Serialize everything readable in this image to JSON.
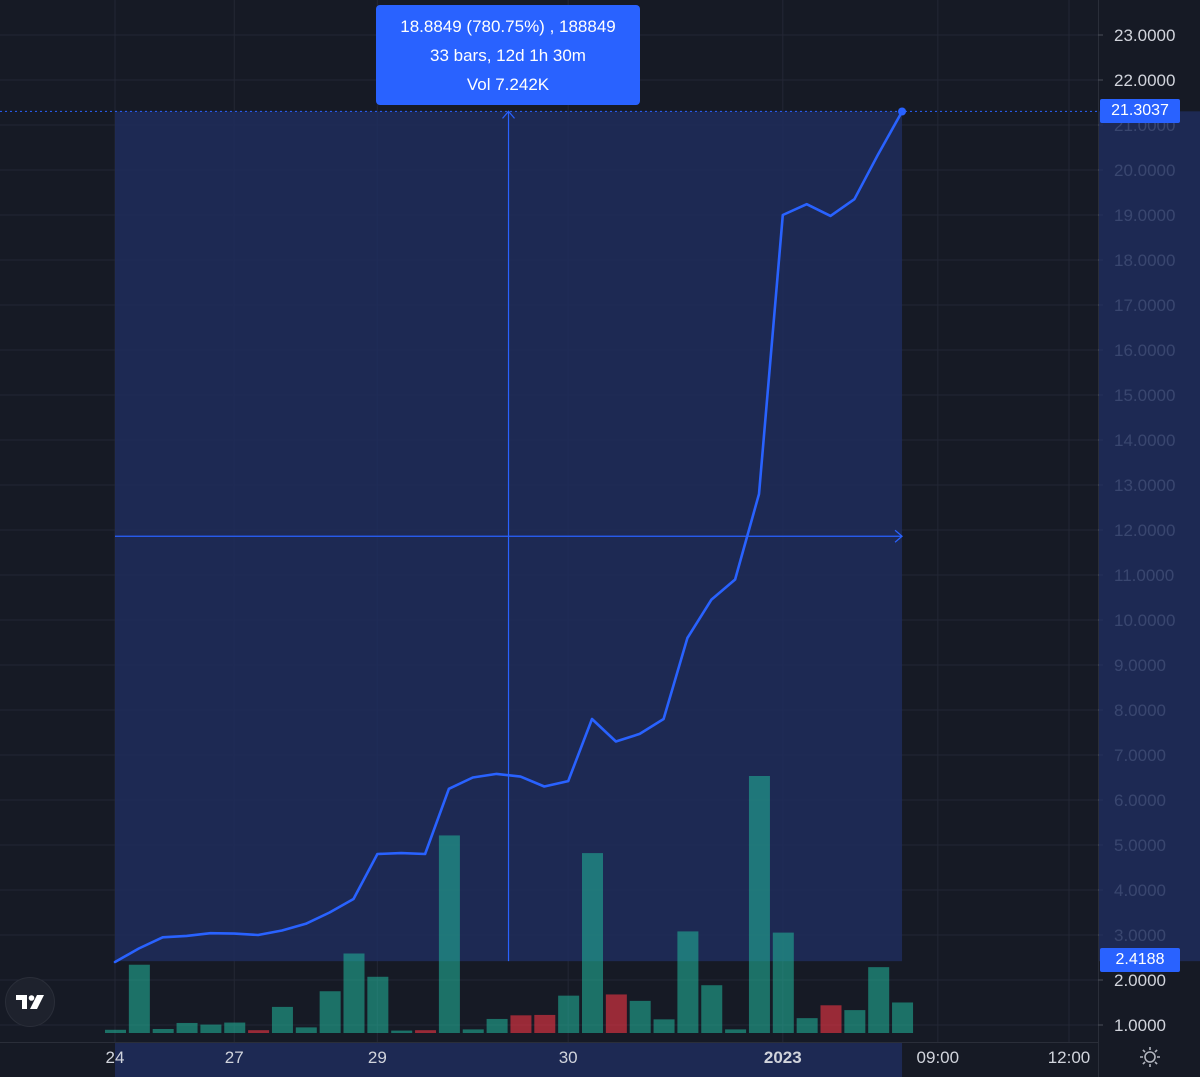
{
  "measure_tooltip": {
    "line1": "18.8849 (780.75%) , 188849",
    "line2": "33 bars, 12d 1h 30m",
    "line3": "Vol 7.242K"
  },
  "price_labels": {
    "current": "21.3037",
    "start": "2.4188"
  },
  "icons": {
    "logo": "tradingview-logo-icon",
    "settings": "gear-icon"
  },
  "colors": {
    "background": "#161a25",
    "line": "#2962ff",
    "selection_fill": "#1f2d5c",
    "volume_up": "#22ab94",
    "volume_down": "#f23645",
    "accent": "#2962ff"
  },
  "chart_data": {
    "type": "line",
    "price_axis": {
      "ticks": [
        "1.0000",
        "2.0000",
        "3.0000",
        "4.0000",
        "5.0000",
        "6.0000",
        "7.0000",
        "8.0000",
        "9.0000",
        "10.0000",
        "11.0000",
        "12.0000",
        "13.0000",
        "14.0000",
        "15.0000",
        "16.0000",
        "17.0000",
        "18.0000",
        "19.0000",
        "20.0000",
        "21.0000",
        "22.0000",
        "23.0000"
      ],
      "range": [
        0.8,
        23.5
      ]
    },
    "time_axis": {
      "ticks": [
        {
          "label": "24",
          "bar": 0,
          "bold": false
        },
        {
          "label": "27",
          "bar": 5,
          "bold": false
        },
        {
          "label": "29",
          "bar": 11,
          "bold": false
        },
        {
          "label": "30",
          "bar": 19,
          "bold": false
        },
        {
          "label": "2023",
          "bar": 28,
          "bold": true
        },
        {
          "label": "09:00",
          "bar": 34.5,
          "bold": false
        },
        {
          "label": "12:00",
          "bar": 40,
          "bold": false
        }
      ]
    },
    "series": [
      {
        "values": [
          2.4,
          2.7,
          2.95,
          2.98,
          3.04,
          3.03,
          3.0,
          3.1,
          3.25,
          3.5,
          3.8,
          4.8,
          4.82,
          4.8,
          6.25,
          6.5,
          6.58,
          6.52,
          6.3,
          6.42,
          7.8,
          7.3,
          7.47,
          7.8,
          9.6,
          10.45,
          10.9,
          12.8,
          19.0,
          19.24,
          18.98,
          19.35,
          20.35,
          21.3
        ]
      }
    ],
    "volume": [
      {
        "v": 80,
        "up": true
      },
      {
        "v": 1700,
        "up": true
      },
      {
        "v": 100,
        "up": true
      },
      {
        "v": 250,
        "up": true
      },
      {
        "v": 210,
        "up": true
      },
      {
        "v": 260,
        "up": true
      },
      {
        "v": 70,
        "up": false
      },
      {
        "v": 650,
        "up": true
      },
      {
        "v": 140,
        "up": true
      },
      {
        "v": 1040,
        "up": true
      },
      {
        "v": 1980,
        "up": true
      },
      {
        "v": 1400,
        "up": true
      },
      {
        "v": 60,
        "up": true
      },
      {
        "v": 70,
        "up": false
      },
      {
        "v": 4920,
        "up": true
      },
      {
        "v": 90,
        "up": true
      },
      {
        "v": 350,
        "up": true
      },
      {
        "v": 440,
        "up": false
      },
      {
        "v": 450,
        "up": false
      },
      {
        "v": 930,
        "up": true
      },
      {
        "v": 4480,
        "up": true
      },
      {
        "v": 960,
        "up": false
      },
      {
        "v": 800,
        "up": true
      },
      {
        "v": 340,
        "up": true
      },
      {
        "v": 2530,
        "up": true
      },
      {
        "v": 1190,
        "up": true
      },
      {
        "v": 90,
        "up": true
      },
      {
        "v": 6400,
        "up": true
      },
      {
        "v": 2500,
        "up": true
      },
      {
        "v": 370,
        "up": true
      },
      {
        "v": 690,
        "up": false
      },
      {
        "v": 570,
        "up": true
      },
      {
        "v": 1640,
        "up": true
      },
      {
        "v": 760,
        "up": true
      }
    ],
    "measure": {
      "start_bar": 0,
      "end_bar": 33,
      "start_price": 2.4188,
      "end_price": 21.3037,
      "mid_bar": 16.5
    }
  }
}
